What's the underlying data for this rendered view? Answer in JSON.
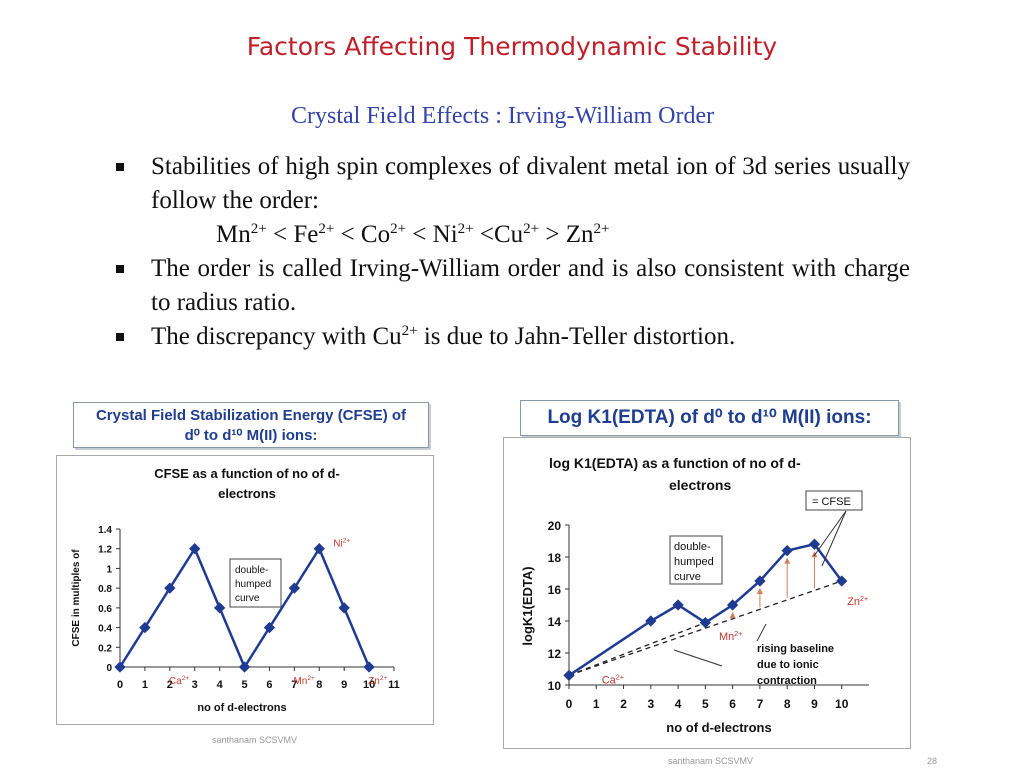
{
  "slide": {
    "title": "Factors Affecting Thermodynamic Stability",
    "subtitle": "Crystal Field Effects : Irving-William Order",
    "bullets": [
      {
        "text": "Stabilities of high spin complexes of divalent metal ion of 3d series usually follow the order:"
      },
      {
        "text": "The order is called Irving-William order and is also consistent with charge to radius ratio."
      },
      {
        "pre": "The discrepancy with Cu",
        "sup": "2+",
        "post": " is due to Jahn-Teller distortion."
      }
    ],
    "order": {
      "ions": [
        "Mn",
        "Fe",
        "Co",
        "Ni",
        "Cu",
        "Zn"
      ],
      "charge": "2+",
      "ops": [
        " < ",
        " < ",
        " < ",
        " <",
        " > "
      ]
    },
    "captions": {
      "left_line1": "Crystal Field Stabilization Energy (CFSE) of",
      "left_line2": "d⁰ to d¹⁰ M(II) ions:",
      "right": "Log K1(EDTA) of d⁰ to d¹⁰ M(II) ions:"
    },
    "watermarks": {
      "left": "santhanam SCSVMV",
      "right": "santhanam SCSVMV",
      "page": "28"
    }
  },
  "chart_data": [
    {
      "type": "line",
      "title_line1": "CFSE as a function of no of d-",
      "title_line2": "electrons",
      "xlabel": "no of d-electrons",
      "ylabel": "CFSE in multiples of",
      "x": [
        0,
        1,
        2,
        3,
        4,
        5,
        6,
        7,
        8,
        9,
        10
      ],
      "values": [
        0,
        0.4,
        0.8,
        1.2,
        0.6,
        0,
        0.4,
        0.8,
        1.2,
        0.6,
        0
      ],
      "xlim": [
        0,
        11
      ],
      "ylim": [
        0,
        1.4
      ],
      "xticks": [
        "0",
        "1",
        "2",
        "3",
        "4",
        "5",
        "6",
        "7",
        "8",
        "9",
        "10",
        "11"
      ],
      "yticks": [
        "0",
        "0.2",
        "0.4",
        "0.6",
        "0.8",
        "1",
        "1.2",
        "1.4"
      ],
      "line_color": "#1f3a93",
      "annotation_box": [
        "double-",
        "humped",
        "curve"
      ],
      "ion_labels": [
        {
          "name": "Ni",
          "x": 8,
          "y": 1.2
        },
        {
          "name": "Ca",
          "x": 1,
          "y": -0.08
        },
        {
          "name": "Mn",
          "x": 6,
          "y": -0.08
        },
        {
          "name": "Zn",
          "x": 9,
          "y": -0.08
        }
      ],
      "ion_charge": "2+"
    },
    {
      "type": "line",
      "title_line1": "log K1(EDTA) as a function of no of d-",
      "title_line2": "electrons",
      "xlabel": "no of d-electrons",
      "ylabel": "logK1(EDTA)",
      "x": [
        0,
        3,
        4,
        5,
        6,
        7,
        8,
        9,
        10
      ],
      "values": [
        10.6,
        14,
        15,
        13.9,
        15,
        16.5,
        18.4,
        18.8,
        16.5
      ],
      "xlim": [
        0,
        11
      ],
      "ylim": [
        10,
        20
      ],
      "xticks": [
        "0",
        "1",
        "2",
        "3",
        "4",
        "5",
        "6",
        "7",
        "8",
        "9",
        "10"
      ],
      "yticks": [
        "10",
        "12",
        "14",
        "16",
        "18",
        "20"
      ],
      "line_color": "#1f3a93",
      "legend_label": "= CFSE",
      "annotation_box": [
        "double-",
        "humped",
        "curve"
      ],
      "baseline_note": [
        "rising baseline",
        "due to ionic",
        "contraction"
      ],
      "ion_labels": [
        {
          "name": "Mn",
          "x": 5.5,
          "y": 12.8
        },
        {
          "name": "Zn",
          "x": 10.2,
          "y": 15.0
        },
        {
          "name": "Ca",
          "x": 1.2,
          "y": 10.1
        }
      ],
      "ion_charge": "2+",
      "baselines": [
        {
          "from": [
            0,
            10.6
          ],
          "to": [
            5,
            13.9
          ]
        },
        {
          "from": [
            0,
            10.6
          ],
          "to": [
            10,
            16.5
          ]
        }
      ]
    }
  ]
}
